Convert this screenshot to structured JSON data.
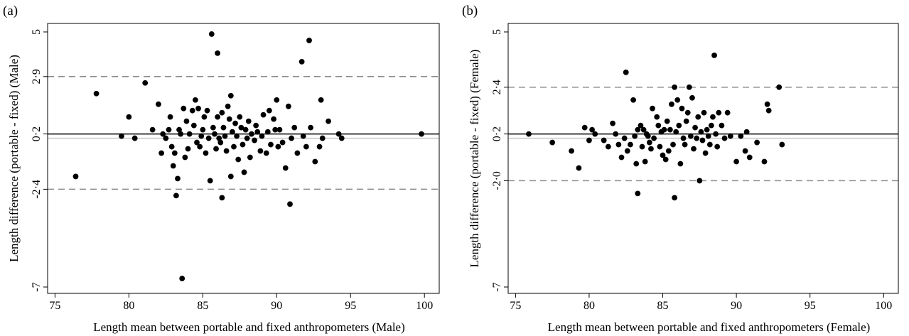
{
  "chart_data": [
    {
      "type": "scatter",
      "panel_label": "(a)",
      "xlabel": "Length mean between portable and fixed anthropometers (Male)",
      "ylabel": "Length difference (portable - fixed) (Male)",
      "xlim": [
        74.5,
        101
      ],
      "ylim": [
        -7.3,
        5.4
      ],
      "xticks": [
        75,
        80,
        85,
        90,
        95,
        100
      ],
      "xtick_labels": [
        "75",
        "80",
        "85",
        "90",
        "95",
        "100"
      ],
      "yticks": [
        5,
        2.9,
        0.2,
        -2.4,
        -7
      ],
      "ytick_labels": [
        "5",
        "2·9",
        "0·2",
        "-2·4",
        "-7"
      ],
      "mean_line": 0.2,
      "zero_line": 0,
      "limits_of_agreement": [
        2.9,
        -2.4
      ],
      "points": [
        [
          76.4,
          -1.8
        ],
        [
          77.8,
          2.1
        ],
        [
          79.5,
          0.1
        ],
        [
          80.0,
          1.0
        ],
        [
          80.4,
          0.0
        ],
        [
          81.1,
          2.6
        ],
        [
          81.6,
          0.4
        ],
        [
          82.0,
          1.6
        ],
        [
          82.2,
          -0.7
        ],
        [
          82.3,
          0.2
        ],
        [
          82.5,
          0.0
        ],
        [
          82.7,
          0.4
        ],
        [
          82.8,
          1.0
        ],
        [
          82.9,
          -0.4
        ],
        [
          83.0,
          -1.3
        ],
        [
          83.1,
          -0.7
        ],
        [
          83.2,
          -2.7
        ],
        [
          83.3,
          -1.9
        ],
        [
          83.4,
          0.4
        ],
        [
          83.5,
          0.2
        ],
        [
          83.6,
          -6.6
        ],
        [
          83.7,
          1.4
        ],
        [
          83.8,
          -0.9
        ],
        [
          83.9,
          0.8
        ],
        [
          84.0,
          -0.5
        ],
        [
          84.1,
          0.2
        ],
        [
          84.3,
          1.3
        ],
        [
          84.4,
          0.6
        ],
        [
          84.5,
          1.8
        ],
        [
          84.6,
          -0.2
        ],
        [
          84.7,
          1.4
        ],
        [
          84.8,
          -0.4
        ],
        [
          84.9,
          0.1
        ],
        [
          85.0,
          0.4
        ],
        [
          85.1,
          1.0
        ],
        [
          85.2,
          -0.7
        ],
        [
          85.3,
          1.3
        ],
        [
          85.4,
          0.0
        ],
        [
          85.5,
          -2.0
        ],
        [
          85.6,
          4.9
        ],
        [
          85.7,
          0.5
        ],
        [
          85.8,
          0.2
        ],
        [
          85.9,
          -0.5
        ],
        [
          86.0,
          4.0
        ],
        [
          86.0,
          1.0
        ],
        [
          86.1,
          0.0
        ],
        [
          86.2,
          -0.2
        ],
        [
          86.3,
          1.2
        ],
        [
          86.3,
          -2.8
        ],
        [
          86.4,
          0.5
        ],
        [
          86.5,
          0.1
        ],
        [
          86.6,
          -0.6
        ],
        [
          86.7,
          1.5
        ],
        [
          86.8,
          0.9
        ],
        [
          86.9,
          -1.8
        ],
        [
          86.9,
          2.0
        ],
        [
          87.0,
          0.3
        ],
        [
          87.1,
          -0.4
        ],
        [
          87.2,
          0.7
        ],
        [
          87.3,
          0.1
        ],
        [
          87.4,
          -1.0
        ],
        [
          87.5,
          1.0
        ],
        [
          87.6,
          0.5
        ],
        [
          87.7,
          -0.3
        ],
        [
          87.8,
          -1.6
        ],
        [
          87.9,
          0.4
        ],
        [
          88.0,
          0.0
        ],
        [
          88.1,
          0.8
        ],
        [
          88.2,
          -0.9
        ],
        [
          88.3,
          0.2
        ],
        [
          88.5,
          -0.1
        ],
        [
          88.6,
          0.6
        ],
        [
          88.7,
          0.3
        ],
        [
          88.9,
          -0.6
        ],
        [
          89.0,
          0.1
        ],
        [
          89.1,
          1.1
        ],
        [
          89.3,
          -0.7
        ],
        [
          89.4,
          0.3
        ],
        [
          89.5,
          1.3
        ],
        [
          89.6,
          -0.3
        ],
        [
          89.8,
          0.9
        ],
        [
          89.9,
          0.4
        ],
        [
          90.0,
          1.8
        ],
        [
          90.1,
          -0.4
        ],
        [
          90.2,
          0.4
        ],
        [
          90.4,
          -0.2
        ],
        [
          90.6,
          -1.4
        ],
        [
          90.8,
          1.5
        ],
        [
          90.9,
          -3.1
        ],
        [
          91.0,
          0.0
        ],
        [
          91.2,
          0.5
        ],
        [
          91.4,
          -0.7
        ],
        [
          91.7,
          3.6
        ],
        [
          91.8,
          0.1
        ],
        [
          92.0,
          -0.4
        ],
        [
          92.2,
          4.6
        ],
        [
          92.3,
          0.5
        ],
        [
          92.6,
          -1.1
        ],
        [
          92.9,
          -0.4
        ],
        [
          93.0,
          1.8
        ],
        [
          93.1,
          0.0
        ],
        [
          93.5,
          0.8
        ],
        [
          94.2,
          0.2
        ],
        [
          94.4,
          0.0
        ],
        [
          99.8,
          0.2
        ]
      ]
    },
    {
      "type": "scatter",
      "panel_label": "(b)",
      "xlabel": "Length mean between portable and fixed anthropometers (Female)",
      "ylabel": "Length difference (portable - fixed) (Female)",
      "xlim": [
        74.5,
        101
      ],
      "ylim": [
        -7.3,
        5.4
      ],
      "xticks": [
        75,
        80,
        85,
        90,
        95,
        100
      ],
      "xtick_labels": [
        "75",
        "80",
        "85",
        "90",
        "95",
        "100"
      ],
      "yticks": [
        5,
        2.4,
        0.2,
        -2,
        -7
      ],
      "ytick_labels": [
        "5",
        "2·4",
        "0·2",
        "-2·0",
        "-7"
      ],
      "mean_line": 0.2,
      "zero_line": 0,
      "limits_of_agreement": [
        2.4,
        -2.0
      ],
      "points": [
        [
          75.9,
          0.2
        ],
        [
          77.5,
          -0.2
        ],
        [
          78.8,
          -0.6
        ],
        [
          79.3,
          -1.4
        ],
        [
          79.7,
          0.5
        ],
        [
          80.0,
          -0.1
        ],
        [
          80.2,
          0.4
        ],
        [
          80.4,
          0.2
        ],
        [
          81.0,
          -0.1
        ],
        [
          81.3,
          -0.4
        ],
        [
          81.6,
          0.7
        ],
        [
          81.8,
          0.2
        ],
        [
          82.0,
          -0.3
        ],
        [
          82.2,
          -0.9
        ],
        [
          82.4,
          0.0
        ],
        [
          82.5,
          3.1
        ],
        [
          82.6,
          -0.6
        ],
        [
          82.8,
          -0.3
        ],
        [
          83.0,
          1.8
        ],
        [
          83.1,
          0.1
        ],
        [
          83.2,
          -1.2
        ],
        [
          83.3,
          0.4
        ],
        [
          83.3,
          -2.6
        ],
        [
          83.5,
          0.6
        ],
        [
          83.6,
          -0.4
        ],
        [
          83.7,
          0.4
        ],
        [
          83.8,
          -1.1
        ],
        [
          83.9,
          0.2
        ],
        [
          84.0,
          0.1
        ],
        [
          84.1,
          -0.2
        ],
        [
          84.2,
          -0.5
        ],
        [
          84.3,
          1.4
        ],
        [
          84.4,
          0.0
        ],
        [
          84.6,
          1.0
        ],
        [
          84.7,
          0.6
        ],
        [
          84.8,
          -0.4
        ],
        [
          84.9,
          0.3
        ],
        [
          85.0,
          -0.8
        ],
        [
          85.1,
          0.4
        ],
        [
          85.2,
          -1.0
        ],
        [
          85.3,
          0.8
        ],
        [
          85.4,
          -0.6
        ],
        [
          85.5,
          0.4
        ],
        [
          85.6,
          1.6
        ],
        [
          85.7,
          -0.3
        ],
        [
          85.8,
          2.4
        ],
        [
          85.8,
          -2.8
        ],
        [
          85.9,
          0.3
        ],
        [
          86.0,
          1.8
        ],
        [
          86.1,
          0.6
        ],
        [
          86.2,
          -1.2
        ],
        [
          86.3,
          1.4
        ],
        [
          86.4,
          0.0
        ],
        [
          86.5,
          -0.3
        ],
        [
          86.6,
          0.8
        ],
        [
          86.7,
          1.2
        ],
        [
          86.8,
          2.4
        ],
        [
          86.9,
          0.1
        ],
        [
          87.0,
          1.9
        ],
        [
          87.1,
          -0.5
        ],
        [
          87.2,
          0.5
        ],
        [
          87.3,
          0.0
        ],
        [
          87.4,
          1.0
        ],
        [
          87.5,
          -2.0
        ],
        [
          87.6,
          0.3
        ],
        [
          87.7,
          -0.1
        ],
        [
          87.8,
          1.2
        ],
        [
          87.9,
          -0.7
        ],
        [
          88.0,
          0.4
        ],
        [
          88.1,
          0.1
        ],
        [
          88.2,
          -0.3
        ],
        [
          88.3,
          0.6
        ],
        [
          88.4,
          1.0
        ],
        [
          88.5,
          3.9
        ],
        [
          88.6,
          0.2
        ],
        [
          88.7,
          -0.4
        ],
        [
          88.8,
          1.2
        ],
        [
          89.0,
          0.6
        ],
        [
          89.2,
          0.0
        ],
        [
          89.4,
          1.2
        ],
        [
          89.6,
          0.1
        ],
        [
          90.0,
          -1.1
        ],
        [
          90.3,
          0.1
        ],
        [
          90.6,
          -0.6
        ],
        [
          90.7,
          0.3
        ],
        [
          90.9,
          -0.9
        ],
        [
          91.4,
          -0.2
        ],
        [
          91.9,
          -1.1
        ],
        [
          92.1,
          1.6
        ],
        [
          92.2,
          1.3
        ],
        [
          92.9,
          2.4
        ],
        [
          93.1,
          -0.3
        ]
      ]
    }
  ]
}
